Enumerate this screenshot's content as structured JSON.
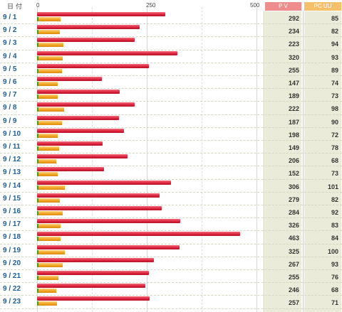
{
  "header": {
    "date_label": "日付",
    "pv_label": "P V",
    "uu_label": "PC UU",
    "ticks": [
      "0",
      "250",
      "500"
    ]
  },
  "colors": {
    "pv_bar": "#d9213a",
    "uu_bar": "#f0a21e",
    "marker": "#3aa02c",
    "date_text": "#1e5e99",
    "pv_header": "#ef8c8c",
    "uu_header": "#f4c06a"
  },
  "chart_data": {
    "type": "bar",
    "orientation": "horizontal",
    "xlim": [
      0,
      500
    ],
    "grid": true,
    "categories": [
      "9 / 1",
      "9 / 2",
      "9 / 3",
      "9 / 4",
      "9 / 5",
      "9 / 6",
      "9 / 7",
      "9 / 8",
      "9 / 9",
      "9 / 10",
      "9 / 11",
      "9 / 12",
      "9 / 13",
      "9 / 14",
      "9 / 15",
      "9 / 16",
      "9 / 17",
      "9 / 18",
      "9 / 19",
      "9 / 20",
      "9 / 21",
      "9 / 22",
      "9 / 23"
    ],
    "series": [
      {
        "name": "P V",
        "values": [
          292,
          234,
          223,
          320,
          255,
          147,
          189,
          222,
          187,
          198,
          149,
          206,
          152,
          306,
          279,
          284,
          326,
          463,
          325,
          267,
          255,
          246,
          257
        ]
      },
      {
        "name": "PC UU",
        "values": [
          85,
          82,
          94,
          93,
          89,
          74,
          73,
          98,
          90,
          72,
          78,
          68,
          73,
          101,
          82,
          92,
          83,
          84,
          100,
          93,
          76,
          68,
          71
        ]
      }
    ]
  }
}
